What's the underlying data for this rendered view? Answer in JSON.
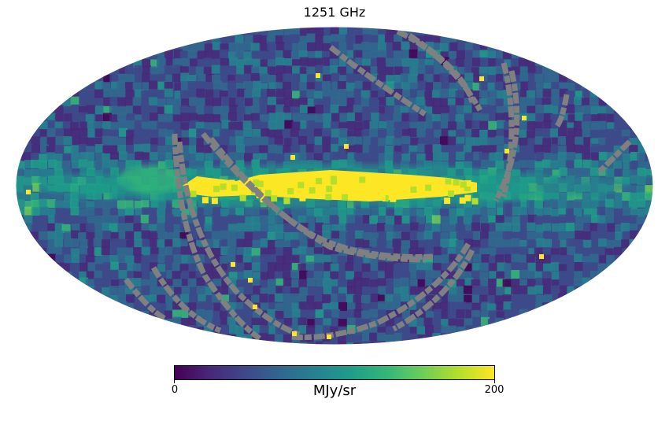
{
  "map": {
    "title": "1251 GHz",
    "projection": "Mollweide",
    "coordinate_frame": "Galactic"
  },
  "colorbar": {
    "unit": "MJy/sr",
    "min_label": "0",
    "max_label": "200",
    "colormap": [
      "#440154",
      "#482878",
      "#3e4989",
      "#31688e",
      "#26828e",
      "#1f9e89",
      "#35b779",
      "#6ece58",
      "#b5de2b",
      "#fde725"
    ]
  },
  "colors": {
    "masked_pixels": "#808080",
    "background": "#ffffff"
  }
}
